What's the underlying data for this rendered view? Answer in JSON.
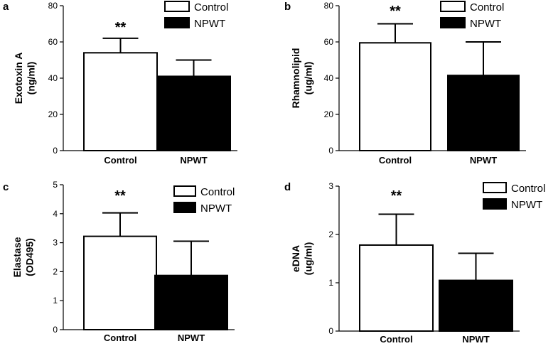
{
  "chart_data": [
    {
      "type": "bar",
      "panel": "a",
      "ylabel_line1": "Exotoxin A",
      "ylabel_line2": "(ng/ml)",
      "categories": [
        "Control",
        "NPWT"
      ],
      "values": [
        54,
        41
      ],
      "error_upper": [
        8,
        9
      ],
      "significance": [
        "**",
        ""
      ],
      "ylim": [
        0,
        80
      ],
      "yticks": [
        "0",
        "20",
        "40",
        "60",
        "80"
      ],
      "legend": [
        "Control",
        "NPWT"
      ],
      "colors": [
        "#ffffff",
        "#000000"
      ]
    },
    {
      "type": "bar",
      "panel": "b",
      "ylabel_line1": "Rhamnolipid",
      "ylabel_line2": "(ug/ml)",
      "categories": [
        "Control",
        "NPWT"
      ],
      "values": [
        59.5,
        41.5
      ],
      "error_upper": [
        10.5,
        18.5
      ],
      "significance": [
        "**",
        ""
      ],
      "ylim": [
        0,
        80
      ],
      "yticks": [
        "0",
        "20",
        "40",
        "60",
        "80"
      ],
      "legend": [
        "Control",
        "NPWT"
      ],
      "colors": [
        "#ffffff",
        "#000000"
      ]
    },
    {
      "type": "bar",
      "panel": "c",
      "ylabel_line1": "Elastase",
      "ylabel_line2": "(OD495)",
      "categories": [
        "Control",
        "NPWT"
      ],
      "values": [
        3.22,
        1.87
      ],
      "error_upper": [
        0.81,
        1.18
      ],
      "significance": [
        "**",
        ""
      ],
      "ylim": [
        0,
        5
      ],
      "yticks": [
        "0",
        "1",
        "2",
        "3",
        "4",
        "5"
      ],
      "legend": [
        "Control",
        "NPWT"
      ],
      "colors": [
        "#ffffff",
        "#000000"
      ]
    },
    {
      "type": "bar",
      "panel": "d",
      "ylabel_line1": "eDNA",
      "ylabel_line2": "(ug/ml)",
      "categories": [
        "Control",
        "NPWT"
      ],
      "values": [
        1.78,
        1.05
      ],
      "error_upper": [
        0.64,
        0.56
      ],
      "significance": [
        "**",
        ""
      ],
      "ylim": [
        0,
        3
      ],
      "yticks": [
        "0",
        "1",
        "2",
        "3"
      ],
      "legend": [
        "Control",
        "NPWT"
      ],
      "colors": [
        "#ffffff",
        "#000000"
      ]
    }
  ]
}
